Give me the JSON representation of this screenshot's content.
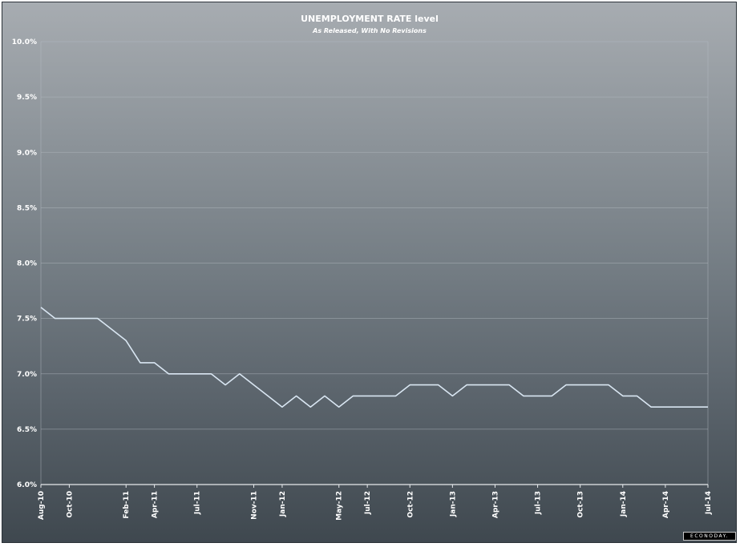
{
  "colors": {
    "line": "#d9e6f2",
    "grid": "#b7bec4",
    "axis": "#e6e9ec",
    "text": "#ffffff"
  },
  "brand": "ECONODAY.",
  "chart_data": {
    "type": "line",
    "title": "UNEMPLOYMENT RATE level",
    "subtitle": "As Released, With No Revisions",
    "xlabel": "",
    "ylabel": "",
    "ylim": [
      6.0,
      10.0
    ],
    "ytick_step": 0.5,
    "yticks": [
      "6.0%",
      "6.5%",
      "7.0%",
      "7.5%",
      "8.0%",
      "8.5%",
      "9.0%",
      "9.5%",
      "10.0%"
    ],
    "grid": true,
    "xticks": [
      {
        "label": "Aug-10",
        "index": 0
      },
      {
        "label": "Oct-10",
        "index": 2
      },
      {
        "label": "Feb-11",
        "index": 6
      },
      {
        "label": "Apr-11",
        "index": 8
      },
      {
        "label": "Jul-11",
        "index": 11
      },
      {
        "label": "Nov-11",
        "index": 15
      },
      {
        "label": "Jan-12",
        "index": 17
      },
      {
        "label": "May-12",
        "index": 21
      },
      {
        "label": "Jul-12",
        "index": 23
      },
      {
        "label": "Oct-12",
        "index": 26
      },
      {
        "label": "Jan-13",
        "index": 29
      },
      {
        "label": "Apr-13",
        "index": 32
      },
      {
        "label": "Jul-13",
        "index": 35
      },
      {
        "label": "Oct-13",
        "index": 38
      },
      {
        "label": "Jan-14",
        "index": 41
      },
      {
        "label": "Apr-14",
        "index": 44
      },
      {
        "label": "Jul-14",
        "index": 47
      }
    ],
    "x": [
      "Aug-10",
      "Sep-10",
      "Oct-10",
      "Nov-10",
      "Dec-10",
      "Jan-11",
      "Feb-11",
      "Mar-11",
      "Apr-11",
      "May-11",
      "Jun-11",
      "Jul-11",
      "Aug-11",
      "Sep-11",
      "Oct-11",
      "Nov-11",
      "Dec-11",
      "Jan-12",
      "Feb-12",
      "Mar-12",
      "Apr-12",
      "May-12",
      "Jun-12",
      "Jul-12",
      "Aug-12",
      "Sep-12",
      "Oct-12",
      "Nov-12",
      "Dec-12",
      "Jan-13",
      "Feb-13",
      "Mar-13",
      "Apr-13",
      "May-13",
      "Jun-13",
      "Jul-13",
      "Aug-13",
      "Sep-13",
      "Oct-13",
      "Nov-13",
      "Dec-13",
      "Jan-14",
      "Feb-14",
      "Mar-14",
      "Apr-14",
      "May-14",
      "Jun-14",
      "Jul-14"
    ],
    "series": [
      {
        "values": [
          7.6,
          7.5,
          7.5,
          7.5,
          7.5,
          7.4,
          7.3,
          7.1,
          7.1,
          7.0,
          7.0,
          7.0,
          7.0,
          6.9,
          7.0,
          6.9,
          6.8,
          6.7,
          6.8,
          6.7,
          6.8,
          6.7,
          6.8,
          6.8,
          6.8,
          6.8,
          6.9,
          6.9,
          6.9,
          6.8,
          6.9,
          6.9,
          6.9,
          6.9,
          6.8,
          6.8,
          6.8,
          6.9,
          6.9,
          6.9,
          6.9,
          6.8,
          6.8,
          6.7,
          6.7,
          6.7,
          6.7,
          6.7
        ]
      }
    ]
  }
}
